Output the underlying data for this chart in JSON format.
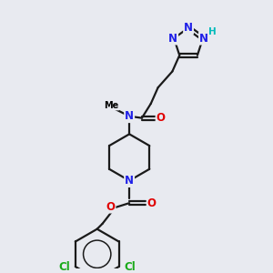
{
  "background_color": "#e8eaf0",
  "atom_colors": {
    "N": "#2020e8",
    "O": "#e00000",
    "Cl": "#1aaa1a",
    "C": "#000000",
    "H": "#00bbbb"
  },
  "bond_color": "#1a1a1a",
  "bond_width": 1.6
}
